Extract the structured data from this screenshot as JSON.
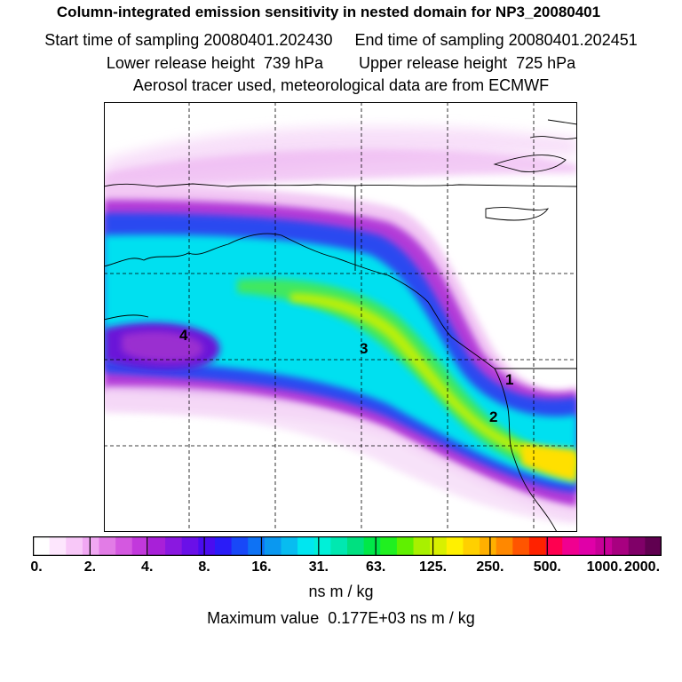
{
  "header": {
    "title": "Column-integrated emission sensitivity in nested domain for NP3_20080401",
    "start_label": "Start time of sampling 20080401.202430",
    "end_label": "End time of sampling 20080401.202451",
    "lower_label": "Lower release height  739 hPa",
    "upper_label": "Upper release height  725 hPa",
    "tracer_line": "Aerosol tracer used, meteorological data are from ECMWF"
  },
  "map": {
    "annotations": [
      "4",
      "3",
      "2",
      "1"
    ]
  },
  "colorbar": {
    "ticks": [
      "0.",
      "2.",
      "4.",
      "8.",
      "16.",
      "31.",
      "63.",
      "125.",
      "250.",
      "500.",
      "1000.",
      "2000."
    ],
    "units": "ns m / kg",
    "colors": [
      "#ffffff",
      "#fde6fd",
      "#f8c8f8",
      "#f1a8f3",
      "#e27ce6",
      "#d458e0",
      "#c238dc",
      "#a820d8",
      "#8a18e0",
      "#6a10e8",
      "#4a0cf0",
      "#2a1cf8",
      "#1848f8",
      "#0e72f4",
      "#0a98f0",
      "#08bcf0",
      "#00e6f0",
      "#00f0d8",
      "#00e8b0",
      "#00e080",
      "#00e848",
      "#20f020",
      "#60f000",
      "#a8f000",
      "#d8f000",
      "#fff000",
      "#ffd000",
      "#ffb000",
      "#ff8800",
      "#ff5500",
      "#ff2200",
      "#ff0050",
      "#f00090",
      "#e000a8",
      "#c80098",
      "#a80080",
      "#800068",
      "#600050"
    ]
  },
  "footer": {
    "max_value": "Maximum value  0.177E+03 ns m / kg"
  }
}
